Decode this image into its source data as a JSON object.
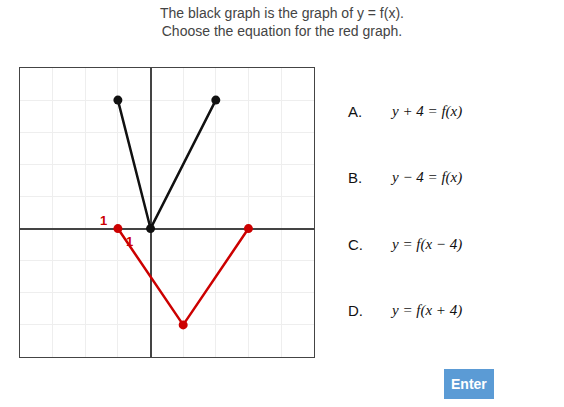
{
  "chart_data": {
    "type": "line",
    "title": "The black graph is the graph of y = f(x).",
    "subtitle": "Choose the equation for the red graph.",
    "series": [
      {
        "color": "#111111",
        "x": [
          -1,
          0,
          2
        ],
        "values": [
          4,
          0,
          4
        ],
        "marker": "circle",
        "line_style": "solid"
      },
      {
        "color": "#cc0000",
        "x": [
          -1,
          1,
          3
        ],
        "values": [
          0,
          -3,
          0
        ],
        "marker": "circle",
        "line_style": "solid"
      }
    ],
    "xlim": [
      -4,
      5
    ],
    "ylim": [
      -4,
      5
    ],
    "xticks": [
      -4,
      -3,
      -2,
      -1,
      0,
      1,
      2,
      3,
      4,
      5
    ],
    "yticks": [
      -4,
      -3,
      -2,
      -1,
      0,
      1,
      2,
      3,
      4,
      5
    ],
    "grid": true,
    "tick_labels": false,
    "annotations": [
      {
        "text": "1",
        "x": -1.45,
        "y": 0.25,
        "color": "#cc0000"
      },
      {
        "text": "1",
        "x": -0.65,
        "y": -0.4,
        "color": "#cc0000"
      },
      {
        "text": "A."
      },
      {
        "text": "y + 4 = f(x)"
      },
      {
        "text": "B."
      },
      {
        "text": "y − 4 = f(x)"
      },
      {
        "text": "C."
      },
      {
        "text": "y = f(x − 4)"
      },
      {
        "text": "D."
      },
      {
        "text": "y = f(x + 4)"
      },
      {
        "text": "Enter",
        "color": "#5b9bd5"
      }
    ]
  }
}
